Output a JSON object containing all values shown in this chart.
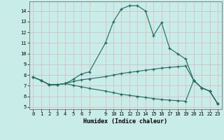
{
  "xlabel": "Humidex (Indice chaleur)",
  "bg_color": "#c8ece8",
  "grid_color": "#d8b8b8",
  "line_color": "#206860",
  "xlim": [
    -0.5,
    23.5
  ],
  "ylim": [
    4.8,
    14.9
  ],
  "yticks": [
    5,
    6,
    7,
    8,
    9,
    10,
    11,
    12,
    13,
    14
  ],
  "xticks": [
    0,
    1,
    2,
    3,
    4,
    5,
    6,
    7,
    9,
    10,
    11,
    12,
    13,
    14,
    15,
    16,
    17,
    18,
    19,
    20,
    21,
    22,
    23
  ],
  "line1_x": [
    0,
    1,
    2,
    3,
    4,
    5,
    6,
    7,
    9,
    10,
    11,
    12,
    13,
    14,
    15,
    16,
    17,
    18,
    19,
    20,
    21,
    22,
    23
  ],
  "line1_y": [
    7.8,
    7.5,
    7.1,
    7.1,
    7.2,
    7.6,
    8.1,
    8.3,
    11.0,
    13.0,
    14.2,
    14.5,
    14.5,
    14.0,
    11.7,
    12.9,
    10.5,
    10.0,
    9.5,
    7.5,
    6.8,
    6.5,
    5.3
  ],
  "line2_x": [
    0,
    1,
    2,
    3,
    4,
    5,
    6,
    7,
    9,
    10,
    11,
    12,
    13,
    14,
    15,
    16,
    17,
    18,
    19,
    20,
    21,
    22,
    23
  ],
  "line2_y": [
    7.8,
    7.5,
    7.1,
    7.1,
    7.2,
    7.4,
    7.55,
    7.65,
    7.85,
    8.0,
    8.15,
    8.25,
    8.35,
    8.45,
    8.55,
    8.65,
    8.72,
    8.78,
    8.85,
    7.5,
    6.8,
    6.5,
    5.3
  ],
  "line3_x": [
    0,
    1,
    2,
    3,
    4,
    5,
    6,
    7,
    9,
    10,
    11,
    12,
    13,
    14,
    15,
    16,
    17,
    18,
    19,
    20,
    21,
    22,
    23
  ],
  "line3_y": [
    7.8,
    7.5,
    7.1,
    7.1,
    7.2,
    7.05,
    6.9,
    6.75,
    6.5,
    6.35,
    6.2,
    6.1,
    6.0,
    5.9,
    5.8,
    5.7,
    5.65,
    5.6,
    5.55,
    7.5,
    6.8,
    6.5,
    5.3
  ]
}
